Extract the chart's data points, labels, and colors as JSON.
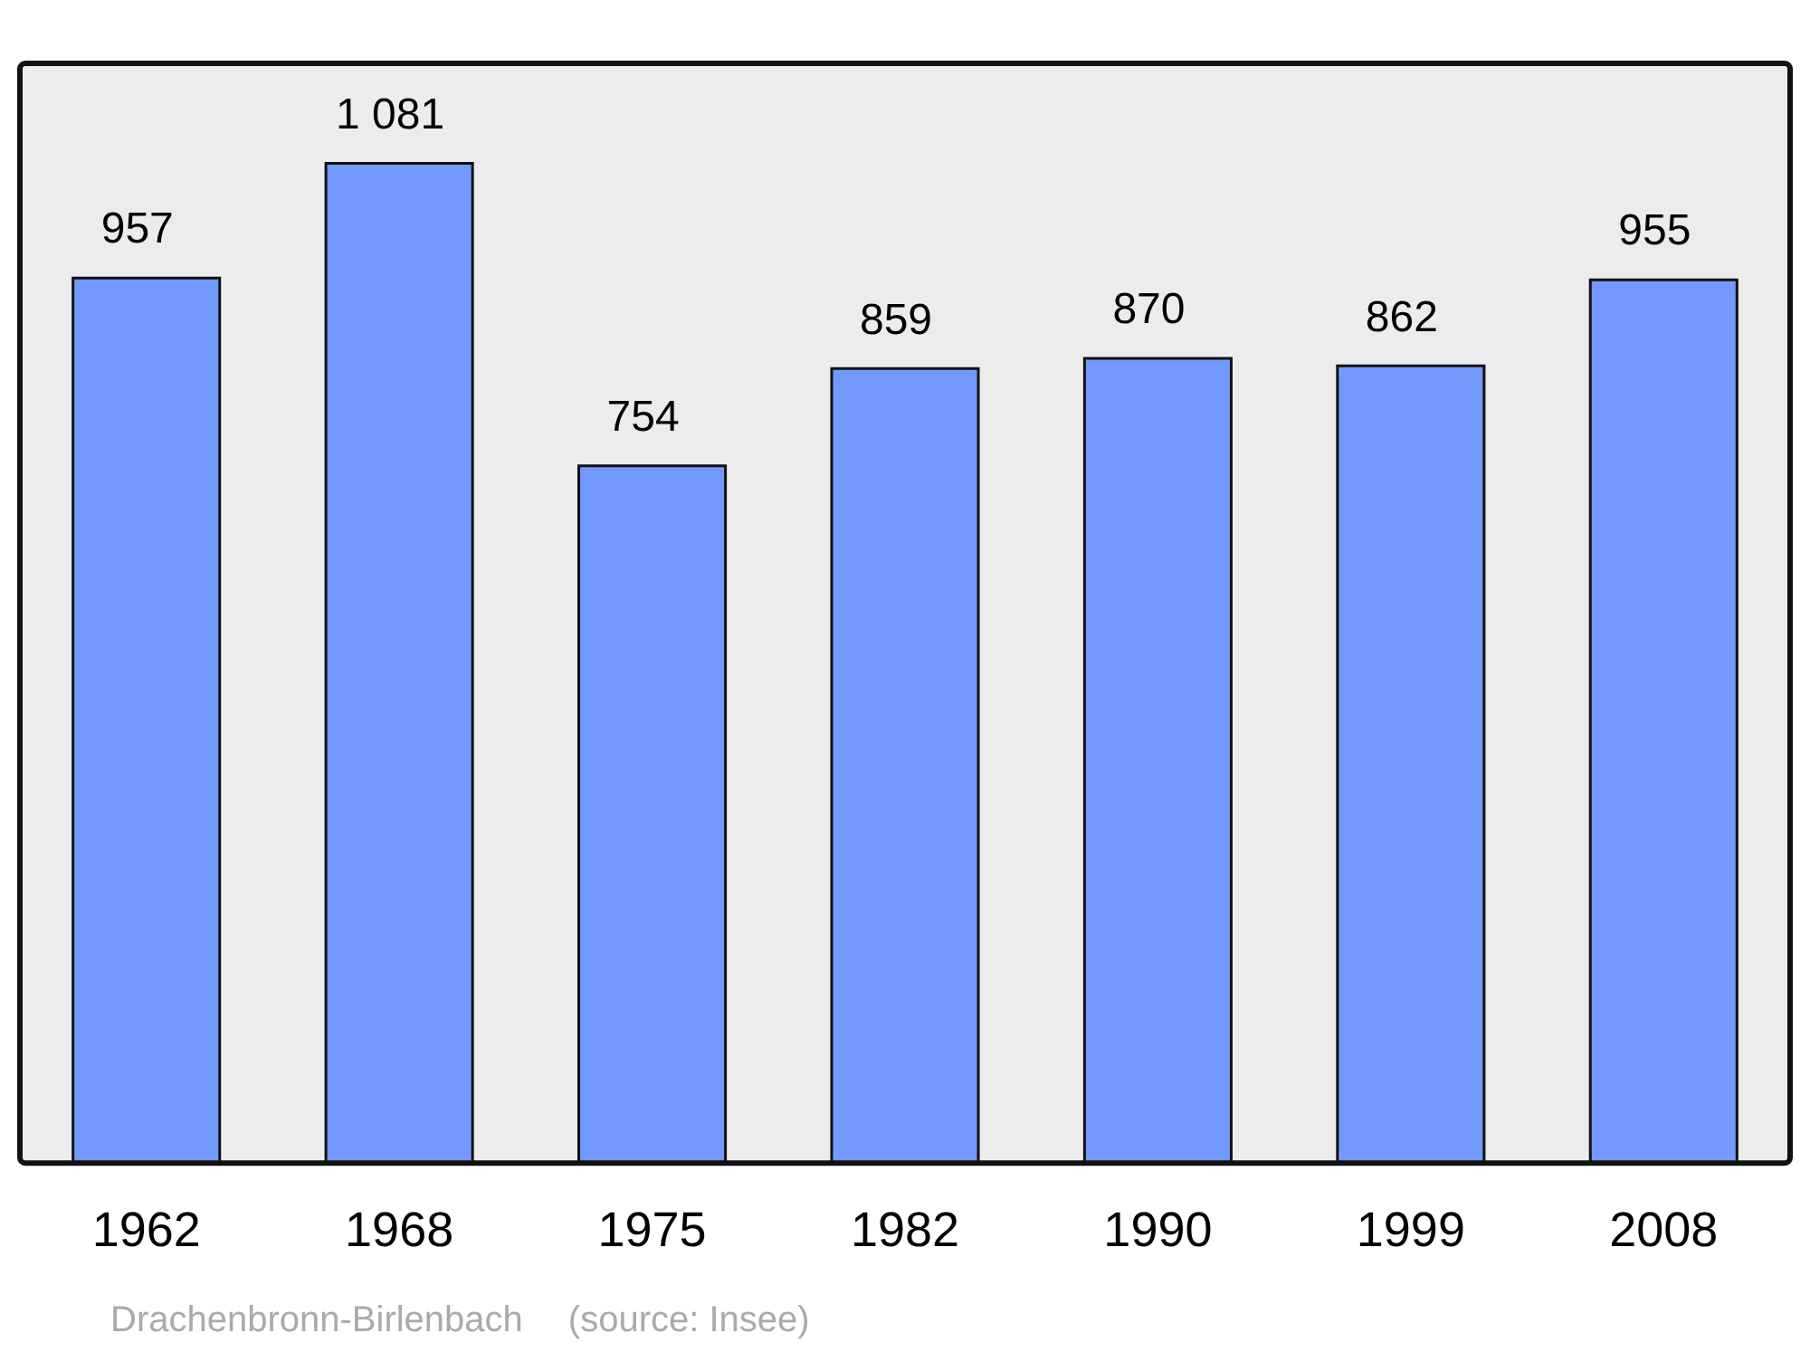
{
  "chart_data": {
    "type": "bar",
    "categories": [
      "1962",
      "1968",
      "1975",
      "1982",
      "1990",
      "1999",
      "2008"
    ],
    "values": [
      957,
      1081,
      754,
      859,
      870,
      862,
      955
    ],
    "value_labels": [
      "957",
      "1 081",
      "754",
      "859",
      "870",
      "862",
      "955"
    ],
    "color": "#7399ff",
    "annotations": [
      "Drachenbronn-Birlenbach",
      "(source: Insee)"
    ]
  }
}
